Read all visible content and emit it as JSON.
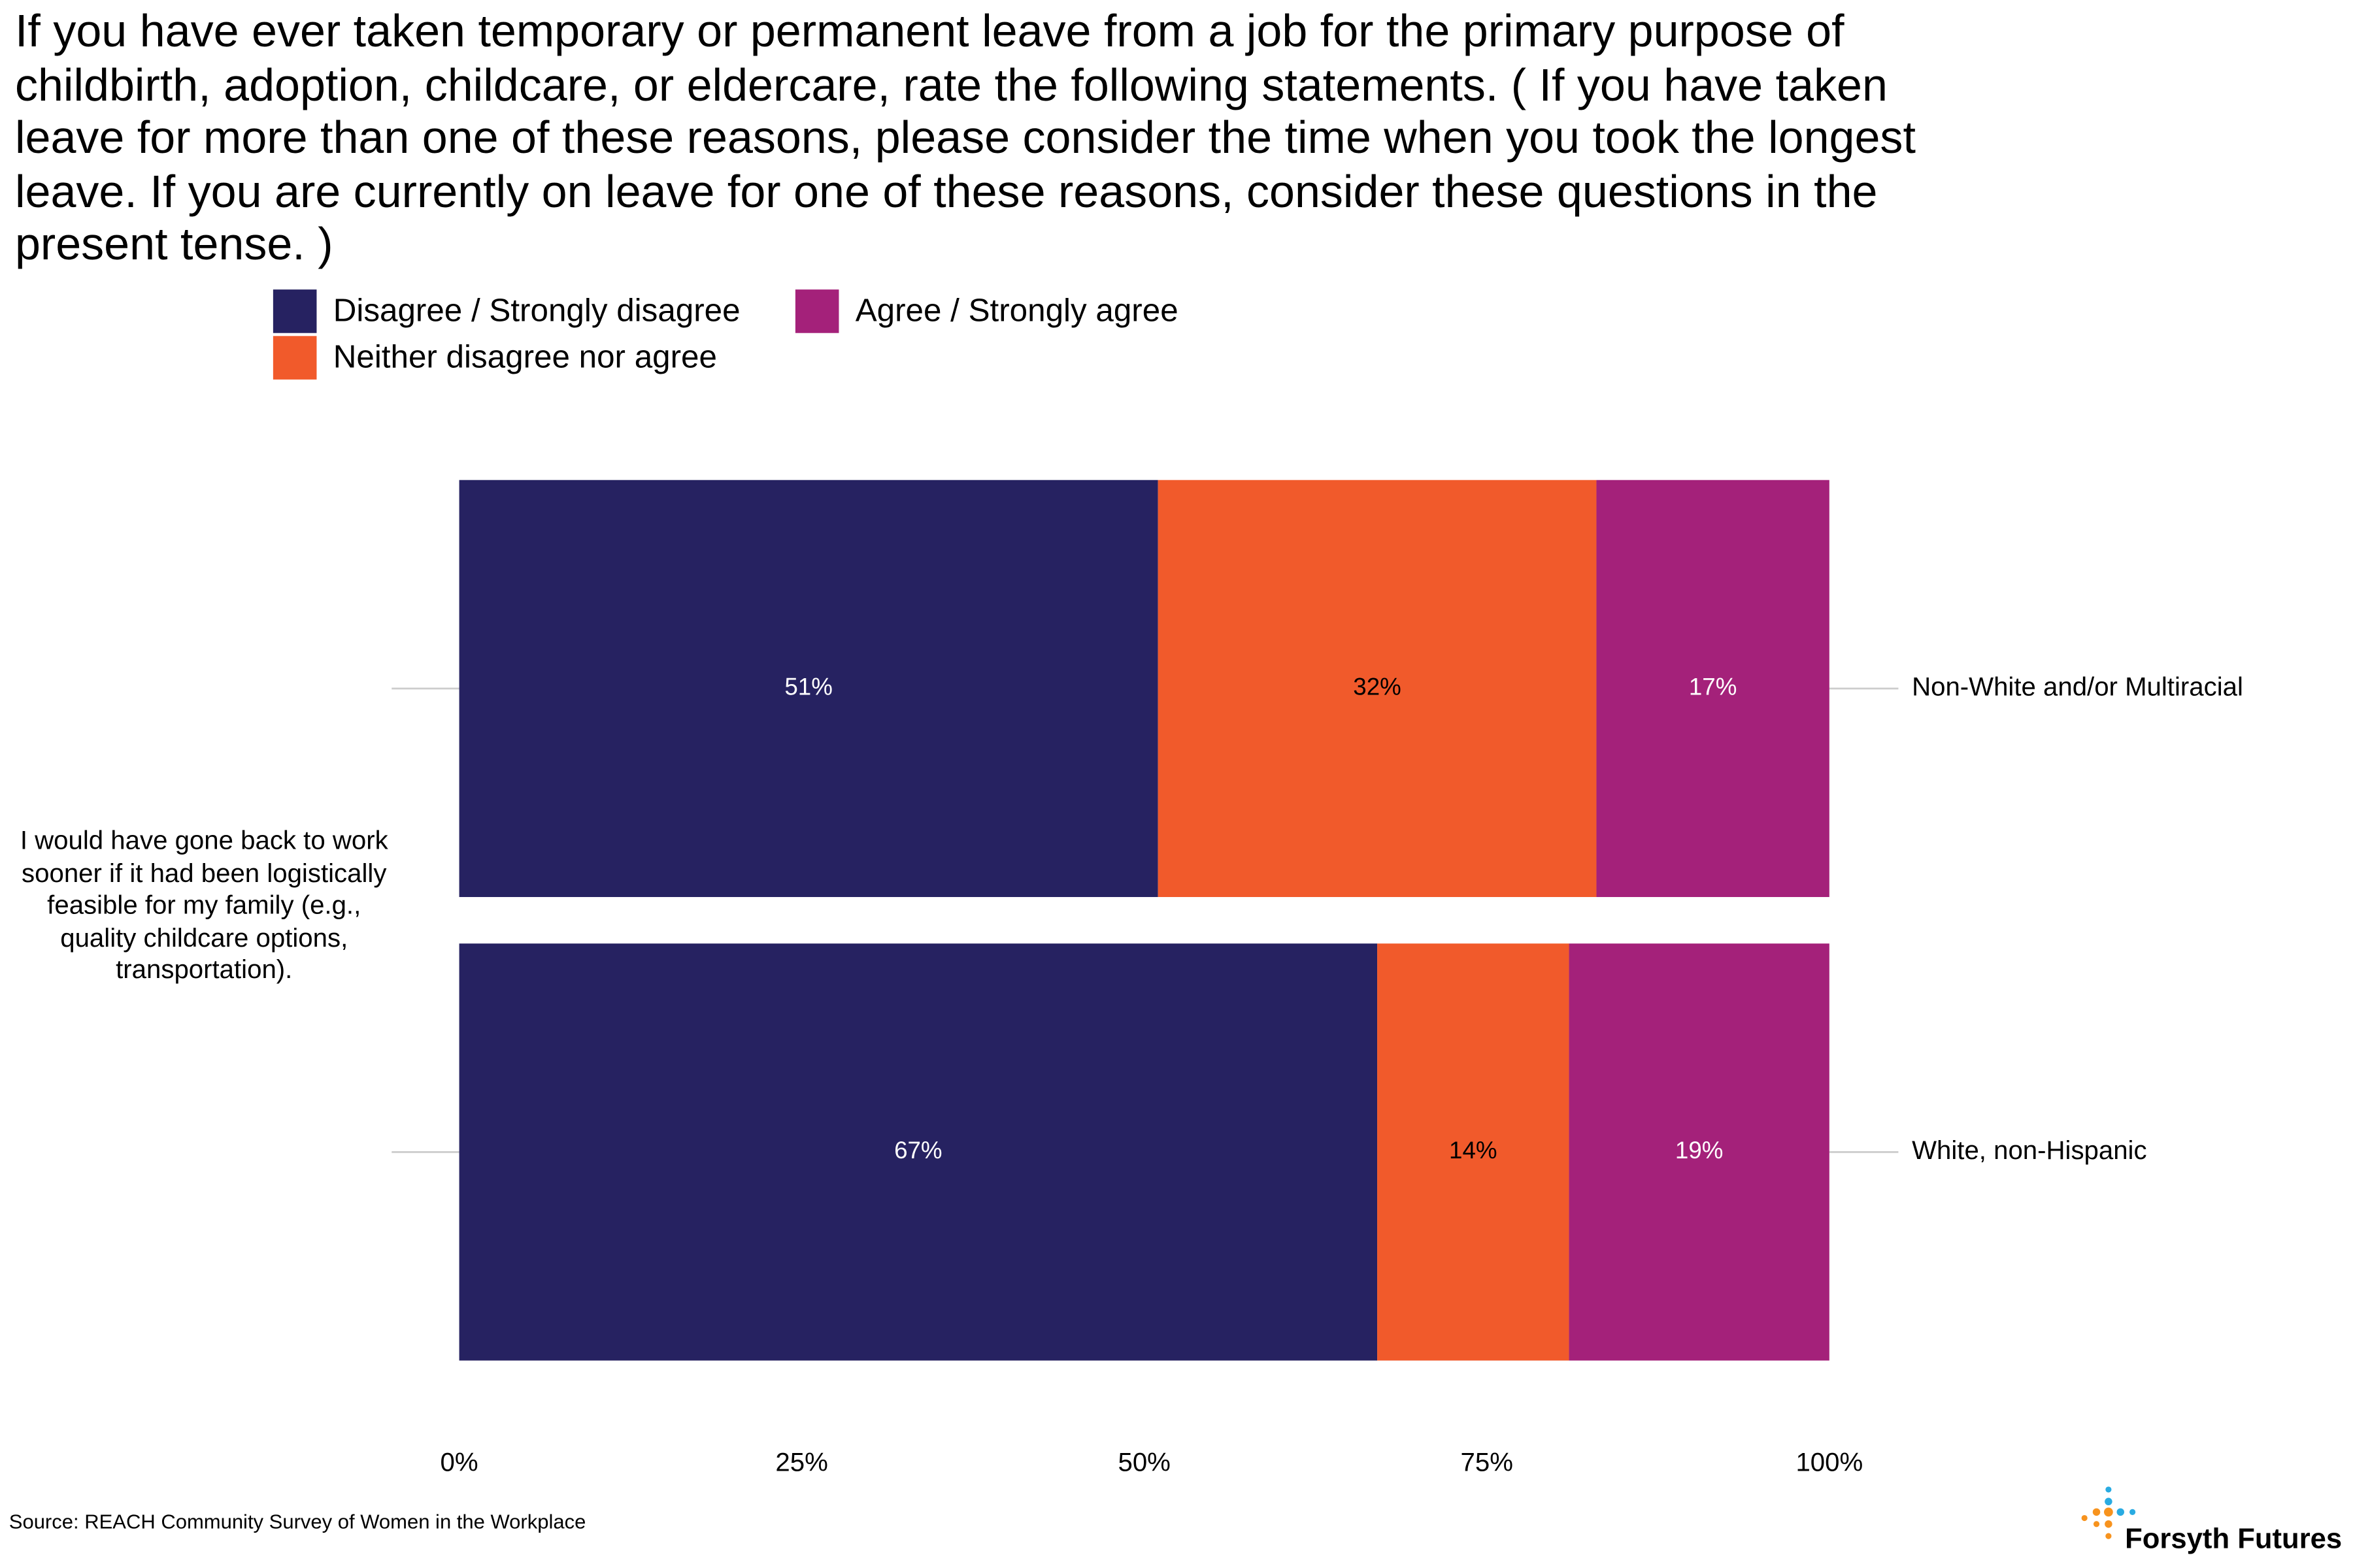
{
  "chart_data": {
    "type": "stacked_barh",
    "title": "If you have ever taken temporary or permanent leave from a job for the primary purpose of childbirth, adoption, childcare, or eldercare, rate the following statements. ( If you have taken leave for more than one of these reasons, please consider the time when you took the longest leave. If you are currently on leave for one of these reasons, consider these questions in the present tense. )",
    "group_label": "I would have gone back to work sooner if it had been logistically feasible for my family (e.g., quality childcare options, transportation).",
    "categories": [
      "Non-White and/or Multiracial",
      "White, non-Hispanic"
    ],
    "series": [
      {
        "name": "Disagree / Strongly disagree",
        "color": "#262261",
        "values": [
          51,
          67
        ],
        "value_labels": [
          "51%",
          "67%"
        ]
      },
      {
        "name": "Neither disagree nor agree",
        "color": "#f15a2b",
        "values": [
          32,
          14
        ],
        "value_labels": [
          "32%",
          "14%"
        ]
      },
      {
        "name": "Agree / Strongly agree",
        "color": "#a4217a",
        "values": [
          17,
          19
        ],
        "value_labels": [
          "17%",
          "19%"
        ]
      }
    ],
    "xlim": [
      0,
      100
    ],
    "xticks": [
      {
        "value": 0,
        "label": "0%"
      },
      {
        "value": 25,
        "label": "25%"
      },
      {
        "value": 50,
        "label": "50%"
      },
      {
        "value": 75,
        "label": "75%"
      },
      {
        "value": 100,
        "label": "100%"
      }
    ],
    "source": "Source: REACH Community Survey of Women in the Workplace",
    "logo_text": "Forsyth Futures"
  }
}
